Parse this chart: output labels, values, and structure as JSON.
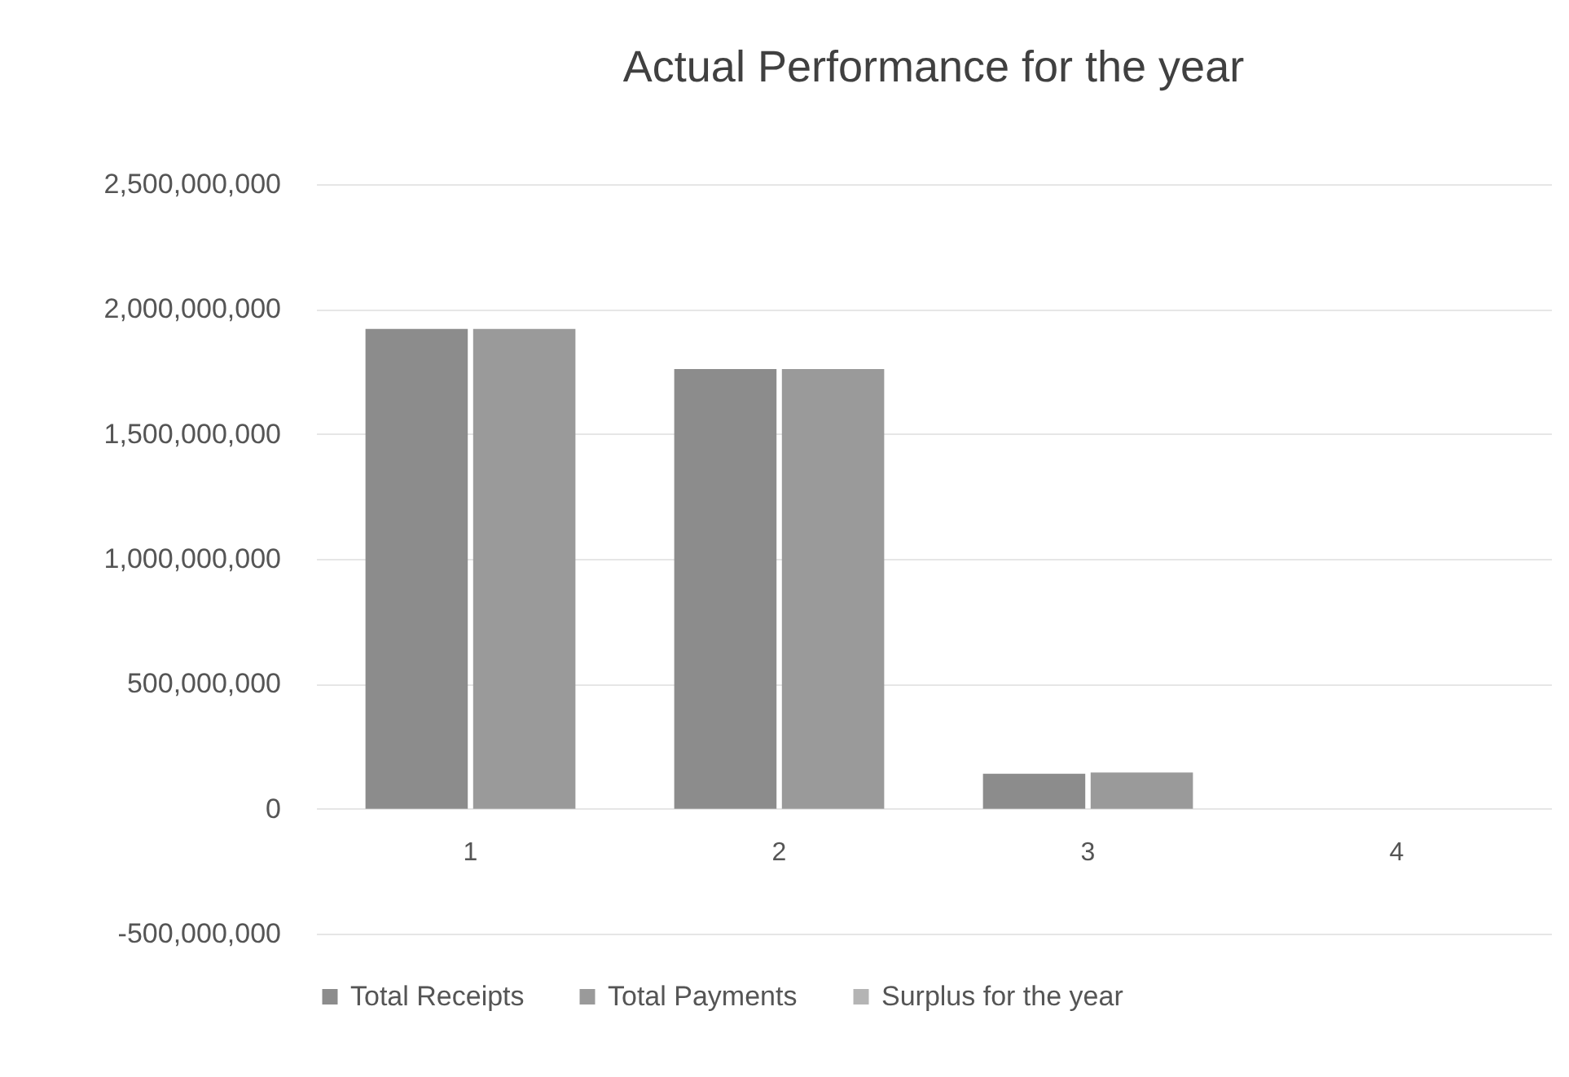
{
  "chart_data": {
    "type": "bar",
    "title": "Actual Performance for the year",
    "categories": [
      "1",
      "2",
      "3",
      "4"
    ],
    "series": [
      {
        "name": "Total Receipts",
        "color": "#8c8c8c",
        "values": [
          1920000000,
          1760000000,
          140000000,
          null
        ]
      },
      {
        "name": "Total Payments",
        "color": "#9a9a9a",
        "values": [
          1920000000,
          1760000000,
          145000000,
          null
        ]
      },
      {
        "name": "Surplus for the year",
        "color": "#b4b4b4",
        "values": [
          null,
          null,
          null,
          null
        ]
      }
    ],
    "ylim": [
      -500000000,
      2500000000
    ],
    "yticks": [
      {
        "value": -500000000,
        "label": "-500,000,000"
      },
      0,
      {
        "value": 500000000,
        "label": "500,000,000"
      },
      {
        "value": 1000000000,
        "label": "1,000,000,000"
      },
      {
        "value": 1500000000,
        "label": "1,500,000,000"
      },
      {
        "value": 2000000000,
        "label": "2,000,000,000"
      },
      {
        "value": 2500000000,
        "label": "2,500,000,000"
      }
    ],
    "grid": "y",
    "legend": "bottom"
  }
}
